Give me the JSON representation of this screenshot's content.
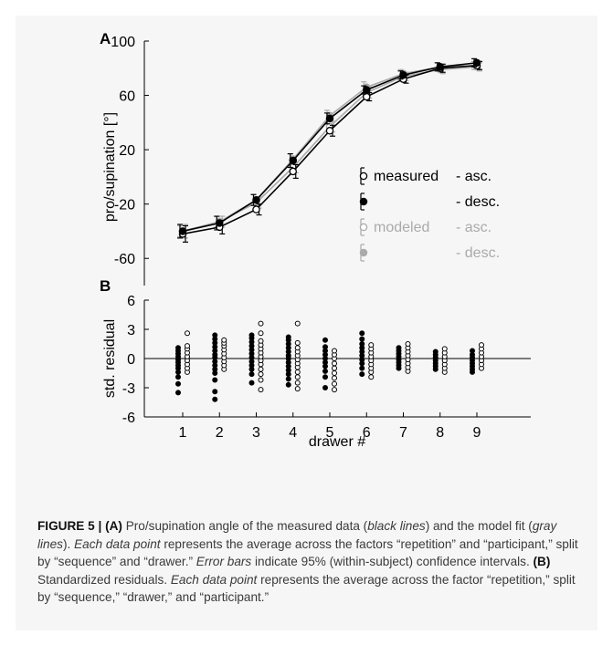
{
  "panel_a": {
    "letter": "A",
    "chart_data": {
      "type": "line",
      "ylabel": "pro/supination [°]",
      "ylim": [
        -80,
        100
      ],
      "yticks": [
        -60,
        -20,
        20,
        60,
        100
      ],
      "x": [
        1,
        2,
        3,
        4,
        5,
        6,
        7,
        8,
        9
      ],
      "series": [
        {
          "name": "measured - asc.",
          "group": "measured",
          "seq": "asc.",
          "color": "#000000",
          "marker": "open",
          "values": [
            -42,
            -37,
            -24,
            4,
            34,
            59,
            72,
            80,
            82
          ],
          "ci": [
            6,
            5,
            4,
            5,
            4,
            3,
            3,
            3,
            3
          ]
        },
        {
          "name": "measured - desc.",
          "group": "measured",
          "seq": "desc.",
          "color": "#000000",
          "marker": "filled",
          "values": [
            -40,
            -34,
            -17,
            12,
            43,
            64,
            75,
            81,
            84
          ],
          "ci": [
            5,
            5,
            4,
            5,
            4,
            3,
            3,
            3,
            3
          ]
        },
        {
          "name": "modeled - asc.",
          "group": "modeled",
          "seq": "asc.",
          "color": "#aaaaaa",
          "marker": "open",
          "values": [
            -40,
            -33,
            -19,
            7,
            37,
            62,
            74,
            79,
            81
          ],
          "ci": [
            5,
            4,
            4,
            4,
            4,
            4,
            3,
            3,
            3
          ]
        },
        {
          "name": "modeled - desc.",
          "group": "modeled",
          "seq": "desc.",
          "color": "#aaaaaa",
          "marker": "filled",
          "values": [
            -40,
            -33,
            -17,
            13,
            45,
            66,
            76,
            81,
            82
          ],
          "ci": [
            4,
            4,
            4,
            4,
            4,
            4,
            3,
            3,
            3
          ]
        }
      ],
      "legend": {
        "placement": "bottom-right",
        "rows": [
          {
            "label": "measured",
            "suffix": "- asc.",
            "color": "#000000",
            "marker": "open"
          },
          {
            "label": "",
            "suffix": "- desc.",
            "color": "#000000",
            "marker": "filled"
          },
          {
            "label": "modeled",
            "suffix": "- asc.",
            "color": "#aaaaaa",
            "marker": "open"
          },
          {
            "label": "",
            "suffix": "- desc.",
            "color": "#aaaaaa",
            "marker": "filled"
          }
        ]
      }
    }
  },
  "panel_b": {
    "letter": "B",
    "chart_data": {
      "type": "scatter",
      "ylabel": "std. residual",
      "xlabel": "drawer #",
      "ylim": [
        -6,
        6
      ],
      "yticks": [
        -6,
        -3,
        0,
        3,
        6
      ],
      "xticks": [
        1,
        2,
        3,
        4,
        5,
        6,
        7,
        8,
        9
      ],
      "series": [
        {
          "marker": "filled",
          "color": "#000000",
          "points": [
            {
              "x": 1,
              "y": [
                -3.5,
                -2.6,
                -1.9,
                -1.4,
                -1.0,
                -0.7,
                -0.4,
                -0.1,
                0.2,
                0.5,
                0.8,
                1.1
              ]
            },
            {
              "x": 2,
              "y": [
                -4.2,
                -3.4,
                -2.2,
                -1.5,
                -1.1,
                -0.7,
                -0.3,
                0.1,
                0.4,
                0.8,
                1.2,
                1.6,
                2.0,
                2.4
              ]
            },
            {
              "x": 3,
              "y": [
                -2.5,
                -1.6,
                -1.1,
                -0.7,
                -0.3,
                0.1,
                0.5,
                0.9,
                1.3,
                1.7,
                2.1,
                2.4
              ]
            },
            {
              "x": 4,
              "y": [
                -2.7,
                -2.1,
                -1.6,
                -1.2,
                -0.8,
                -0.4,
                0.0,
                0.3,
                0.7,
                1.1,
                1.5,
                1.9,
                2.2
              ]
            },
            {
              "x": 5,
              "y": [
                -3.0,
                -1.9,
                -1.3,
                -0.8,
                -0.4,
                0.0,
                0.4,
                0.8,
                1.2,
                1.9
              ]
            },
            {
              "x": 6,
              "y": [
                -1.6,
                -1.0,
                -0.5,
                -0.1,
                0.3,
                0.7,
                1.1,
                1.5,
                2.0,
                2.6
              ]
            },
            {
              "x": 7,
              "y": [
                -1.0,
                -0.7,
                -0.4,
                -0.1,
                0.2,
                0.5,
                0.8,
                1.1
              ]
            },
            {
              "x": 8,
              "y": [
                -1.1,
                -0.8,
                -0.5,
                -0.2,
                0.1,
                0.4,
                0.7
              ]
            },
            {
              "x": 9,
              "y": [
                -1.4,
                -1.1,
                -0.8,
                -0.5,
                -0.2,
                0.1,
                0.4,
                0.8
              ]
            }
          ]
        },
        {
          "marker": "open",
          "color": "#000000",
          "points": [
            {
              "x": 1,
              "y": [
                -1.4,
                -1.0,
                -0.6,
                -0.2,
                0.2,
                0.6,
                1.0,
                1.3,
                2.6
              ]
            },
            {
              "x": 2,
              "y": [
                -1.1,
                -0.7,
                -0.3,
                0.1,
                0.5,
                0.9,
                1.3,
                1.6,
                1.9
              ]
            },
            {
              "x": 3,
              "y": [
                -3.2,
                -2.2,
                -1.6,
                -1.1,
                -0.6,
                -0.2,
                0.2,
                0.6,
                1.0,
                1.4,
                1.8,
                2.6,
                3.6
              ]
            },
            {
              "x": 4,
              "y": [
                -3.1,
                -2.5,
                -1.9,
                -1.4,
                -0.9,
                -0.5,
                -0.1,
                0.3,
                0.7,
                1.1,
                1.6,
                3.6
              ]
            },
            {
              "x": 5,
              "y": [
                -3.2,
                -2.6,
                -2.0,
                -1.5,
                -1.0,
                -0.5,
                0.0,
                0.4,
                0.8
              ]
            },
            {
              "x": 6,
              "y": [
                -1.9,
                -1.4,
                -1.0,
                -0.6,
                -0.2,
                0.2,
                0.6,
                1.0,
                1.4
              ]
            },
            {
              "x": 7,
              "y": [
                -1.3,
                -0.9,
                -0.5,
                -0.1,
                0.3,
                0.7,
                1.1,
                1.5
              ]
            },
            {
              "x": 8,
              "y": [
                -1.4,
                -1.0,
                -0.6,
                -0.2,
                0.2,
                0.6,
                1.0
              ]
            },
            {
              "x": 9,
              "y": [
                -1.0,
                -0.6,
                -0.2,
                0.2,
                0.6,
                1.0,
                1.4
              ]
            }
          ]
        }
      ]
    }
  },
  "caption": {
    "label": "FIGURE 5 | ",
    "a_tag": "(A)",
    "t1": " Pro/supination angle of the measured data (",
    "t2": "black lines",
    "t3": ") and the model fit (",
    "t4": "gray lines",
    "t5": "). ",
    "t6": "Each data point",
    "t7": " represents the average across the factors “repetition” and “participant,” split by “sequence” and “drawer.” ",
    "t8": "Error bars",
    "t9": " indicate 95% (within-subject) confidence intervals. ",
    "b_tag": "(B)",
    "t10": " Standardized residuals. ",
    "t11": "Each data point",
    "t12": " represents the average across the factor “repetition,” split by “sequence,” “drawer,” and “participant.”"
  }
}
